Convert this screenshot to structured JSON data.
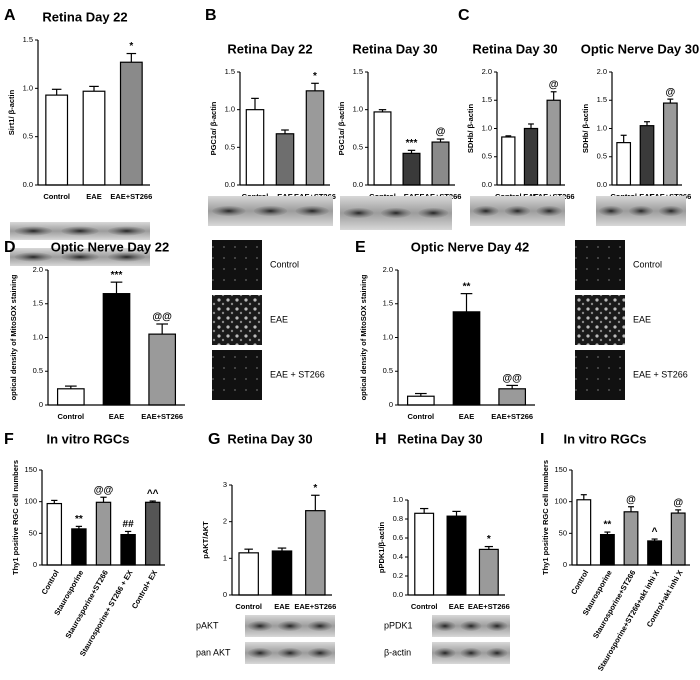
{
  "chart_data": [
    {
      "type": "bar",
      "panel": "A",
      "title": "Retina Day 22",
      "ylabel": "Sirt1/ β-actin",
      "categories": [
        "Control",
        "EAE",
        "EAE+ST266"
      ],
      "values": [
        0.93,
        0.97,
        1.27
      ],
      "errors": [
        0.06,
        0.05,
        0.09
      ],
      "annotations": [
        null,
        null,
        "*"
      ],
      "colors": [
        "#ffffff",
        "#ffffff",
        "#8a8a8a"
      ],
      "ylim": [
        0,
        1.5
      ],
      "yticks": [
        {
          "value": 0,
          "label": "0.0"
        },
        0.5,
        {
          "value": 1,
          "label": "1.0"
        },
        1.5
      ]
    },
    {
      "type": "bar",
      "panel": "B",
      "title": "Retina Day 22",
      "ylabel": "PGC1α/ β-actin",
      "categories": [
        "Control",
        "EAE",
        "EAE+ST266"
      ],
      "values": [
        1.0,
        0.68,
        1.25
      ],
      "errors": [
        0.15,
        0.05,
        0.1
      ],
      "annotations": [
        null,
        null,
        "*"
      ],
      "colors": [
        "#ffffff",
        "#6e6e6e",
        "#9a9a9a"
      ],
      "ylim": [
        0,
        1.5
      ],
      "yticks": [
        {
          "value": 0,
          "label": "0.0"
        },
        0.5,
        {
          "value": 1,
          "label": "1.0"
        },
        1.5
      ]
    },
    {
      "type": "bar",
      "title": "Retina Day 30",
      "ylabel": "PGC1α/ β-actin",
      "categories": [
        "Control",
        "EAE",
        "EAE+ST266"
      ],
      "values": [
        0.97,
        0.42,
        0.57
      ],
      "errors": [
        0.03,
        0.04,
        0.04
      ],
      "annotations": [
        null,
        "***",
        "@"
      ],
      "colors": [
        "#ffffff",
        "#3a3a3a",
        "#8a8a8a"
      ],
      "ylim": [
        0,
        1.5
      ],
      "yticks": [
        {
          "value": 0,
          "label": "0.0"
        },
        0.5,
        {
          "value": 1,
          "label": "1.0"
        },
        1.5
      ]
    },
    {
      "type": "bar",
      "panel": "C",
      "title": "Retina Day 30",
      "ylabel": "SDHb/ β-actin",
      "categories": [
        "Control",
        "EAE",
        "EAE+ST266"
      ],
      "values": [
        0.85,
        1.0,
        1.5
      ],
      "errors": [
        0.02,
        0.08,
        0.15
      ],
      "annotations": [
        null,
        null,
        "@"
      ],
      "colors": [
        "#ffffff",
        "#3a3a3a",
        "#9a9a9a"
      ],
      "ylim": [
        0,
        2
      ],
      "yticks": [
        {
          "value": 0,
          "label": "0.0"
        },
        0.5,
        {
          "value": 1,
          "label": "1.0"
        },
        1.5,
        {
          "value": 2,
          "label": "2.0"
        }
      ]
    },
    {
      "type": "bar",
      "title": "Optic Nerve Day 30",
      "ylabel": "SDHb/ β-actin",
      "categories": [
        "Control",
        "EAE",
        "EAE+ST266"
      ],
      "values": [
        0.75,
        1.05,
        1.45
      ],
      "errors": [
        0.13,
        0.07,
        0.07
      ],
      "annotations": [
        null,
        null,
        "@"
      ],
      "colors": [
        "#ffffff",
        "#3a3a3a",
        "#9a9a9a"
      ],
      "ylim": [
        0,
        2
      ],
      "yticks": [
        {
          "value": 0,
          "label": "0.0"
        },
        0.5,
        {
          "value": 1,
          "label": "1.0"
        },
        1.5,
        {
          "value": 2,
          "label": "2.0"
        }
      ]
    },
    {
      "type": "bar",
      "panel": "D",
      "title": "Optic Nerve Day 22",
      "ylabel": "optical density of MitoSOX staining",
      "categories": [
        "Control",
        "EAE",
        "EAE+ST266"
      ],
      "values": [
        0.24,
        1.65,
        1.05
      ],
      "errors": [
        0.04,
        0.17,
        0.15
      ],
      "annotations": [
        null,
        "***",
        "@@"
      ],
      "colors": [
        "#ffffff",
        "#000000",
        "#9a9a9a"
      ],
      "ylim": [
        0,
        2
      ],
      "yticks": [
        0,
        0.5,
        {
          "value": 1,
          "label": "1.0"
        },
        1.5,
        {
          "value": 2,
          "label": "2.0"
        }
      ],
      "image_labels": [
        "Control",
        "EAE",
        "EAE + ST266"
      ]
    },
    {
      "type": "bar",
      "panel": "E",
      "title": "Optic Nerve Day 42",
      "ylabel": "optical density of MitoSOX staining",
      "categories": [
        "Control",
        "EAE",
        "EAE+ST266"
      ],
      "values": [
        0.13,
        1.38,
        0.24
      ],
      "errors": [
        0.04,
        0.27,
        0.05
      ],
      "annotations": [
        null,
        "**",
        "@@"
      ],
      "colors": [
        "#ffffff",
        "#000000",
        "#9a9a9a"
      ],
      "ylim": [
        0,
        2
      ],
      "yticks": [
        0,
        0.5,
        {
          "value": 1,
          "label": "1.0"
        },
        1.5,
        {
          "value": 2,
          "label": "2.0"
        }
      ],
      "image_labels": [
        "Control",
        "EAE",
        "EAE + ST266"
      ]
    },
    {
      "type": "bar",
      "panel": "F",
      "title": "In vitro RGCs",
      "ylabel": "Thy1 positive RGC cell numbers",
      "categories": [
        "Control",
        "Staurosporine",
        "Staurosporine+ST266",
        "Staurosporine+ ST266 + EX",
        "Control+ EX"
      ],
      "values": [
        97,
        57,
        99,
        48,
        99
      ],
      "errors": [
        5,
        4,
        8,
        5,
        2
      ],
      "annotations": [
        null,
        "**",
        "@@",
        "##",
        "^^"
      ],
      "colors": [
        "#ffffff",
        "#000000",
        "#9a9a9a",
        "#000000",
        "#555555"
      ],
      "ylim": [
        0,
        150
      ],
      "yticks": [
        0,
        50,
        100,
        150
      ]
    },
    {
      "type": "bar",
      "panel": "G",
      "title": "Retina Day 30",
      "ylabel": "pAKT/AKT",
      "categories": [
        "Control",
        "EAE",
        "EAE+ST266"
      ],
      "values": [
        1.15,
        1.2,
        2.3
      ],
      "errors": [
        0.1,
        0.08,
        0.42
      ],
      "annotations": [
        null,
        null,
        "*"
      ],
      "colors": [
        "#ffffff",
        "#000000",
        "#9a9a9a"
      ],
      "ylim": [
        0,
        3
      ],
      "yticks": [
        0,
        1,
        2,
        3
      ],
      "blot_labels": [
        "pAKT",
        "pan AKT"
      ]
    },
    {
      "type": "bar",
      "panel": "H",
      "title": "Retina Day 30",
      "ylabel": "pPDK1/β-actin",
      "categories": [
        "Control",
        "EAE",
        "EAE+ST266"
      ],
      "values": [
        0.86,
        0.83,
        0.48
      ],
      "errors": [
        0.05,
        0.05,
        0.03
      ],
      "annotations": [
        null,
        null,
        "*"
      ],
      "colors": [
        "#ffffff",
        "#000000",
        "#9a9a9a"
      ],
      "ylim": [
        0,
        1
      ],
      "yticks": [
        {
          "value": 0,
          "label": "0.0"
        },
        0.2,
        0.4,
        0.6,
        0.8,
        {
          "value": 1,
          "label": "1.0"
        }
      ],
      "blot_labels": [
        "pPDK1",
        "β-actin"
      ]
    },
    {
      "type": "bar",
      "panel": "I",
      "title": "In vitro RGCs",
      "ylabel": "Thy1 positive RGC cell numbers",
      "categories": [
        "Control",
        "Staurosporine",
        "Staurosporine+ST266",
        "Staurosporine+ST266+akt inhi X",
        "Control+akt inhi X"
      ],
      "values": [
        103,
        48,
        84,
        38,
        82
      ],
      "errors": [
        8,
        4,
        8,
        3,
        5
      ],
      "annotations": [
        null,
        "**",
        "@",
        "^",
        "@"
      ],
      "colors": [
        "#ffffff",
        "#000000",
        "#9a9a9a",
        "#000000",
        "#9a9a9a"
      ],
      "ylim": [
        0,
        150
      ],
      "yticks": [
        0,
        50,
        100,
        150
      ]
    }
  ]
}
